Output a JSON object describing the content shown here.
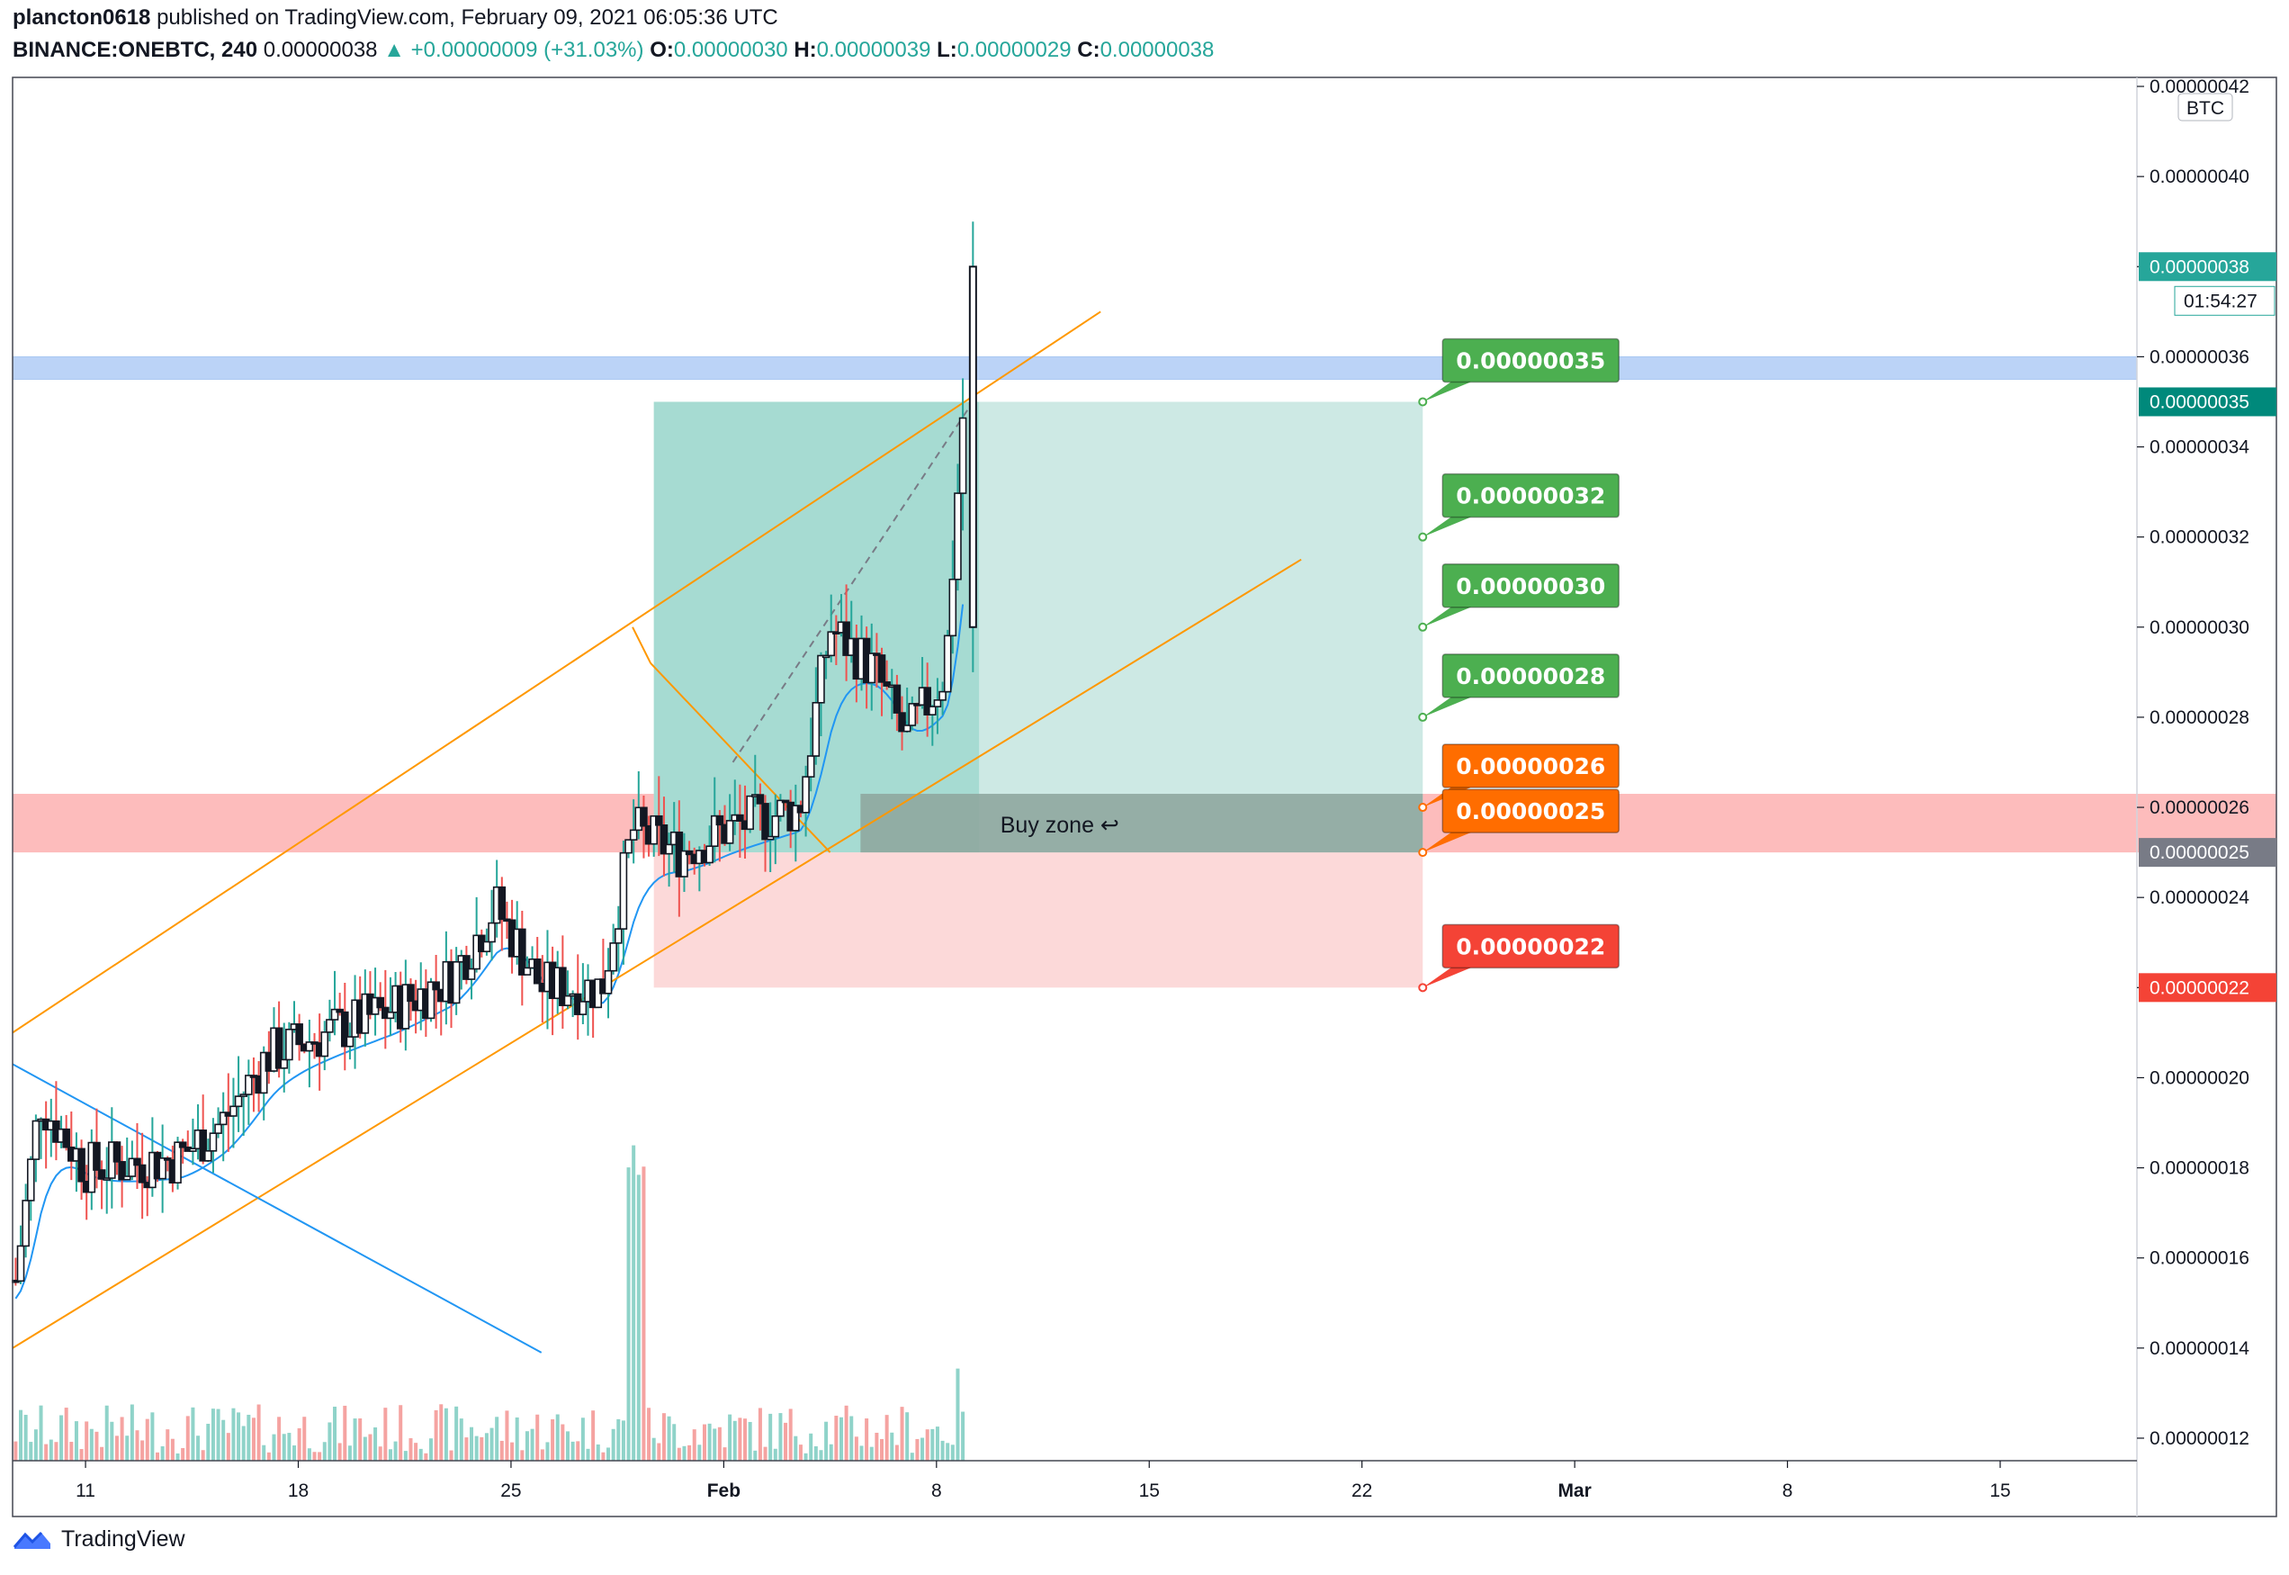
{
  "header": {
    "publisher": "plancton0618",
    "published_text": "published on TradingView.com, February 09, 2021 06:05:36 UTC",
    "symbol": "BINANCE:ONEBTC, 240",
    "last": "0.00000038",
    "change": "+0.00000009 (+31.03%)",
    "o_label": "O:",
    "o_value": "0.00000030",
    "h_label": "H:",
    "h_value": "0.00000039",
    "l_label": "L:",
    "l_value": "0.00000029",
    "c_label": "C:",
    "c_value": "0.00000038"
  },
  "footer": {
    "brand": "TradingView"
  },
  "colors": {
    "up": "#26a69a",
    "down": "#ef5350",
    "body": "#131722",
    "ma": "#2196f3",
    "channel": "#ff9800",
    "downtrend": "#2196f3",
    "resistance_zone": "#bbd3f7",
    "support_zone": "#fdbcbc",
    "target_zone": "#cde9e4",
    "stop_zone": "#fcd9d9",
    "target_label": "#4caf50",
    "entry_label": "#ff6d00",
    "stop_label": "#f44336"
  },
  "chart_data": {
    "type": "candlestick",
    "symbol": "BINANCE:ONEBTC",
    "timeframe": "240",
    "currency_badge": "BTC",
    "y_ticks": [
      "0.00000042",
      "0.00000040",
      "0.00000038",
      "0.00000036",
      "0.00000034",
      "0.00000032",
      "0.00000030",
      "0.00000028",
      "0.00000026",
      "0.00000024",
      "0.00000022",
      "0.00000020",
      "0.00000018",
      "0.00000016",
      "0.00000014",
      "0.00000012"
    ],
    "y_tick_values": [
      4.2e-07,
      4e-07,
      3.8e-07,
      3.6e-07,
      3.4e-07,
      3.2e-07,
      3e-07,
      2.8e-07,
      2.6e-07,
      2.4e-07,
      2.2e-07,
      2e-07,
      1.8e-07,
      1.6e-07,
      1.4e-07,
      1.2e-07
    ],
    "ylim": [
      1.15e-07,
      4.22e-07
    ],
    "x_ticks": [
      "11",
      "18",
      "25",
      "Feb",
      "8",
      "15",
      "22",
      "Mar",
      "8",
      "15"
    ],
    "x_tick_days": [
      11,
      18,
      25,
      32,
      39,
      46,
      53,
      60,
      67,
      74
    ],
    "xlim_days": [
      8.6,
      78.5
    ],
    "price_path": [
      {
        "day": 8.7,
        "price": 1.55e-07
      },
      {
        "day": 9.5,
        "price": 1.95e-07
      },
      {
        "day": 11,
        "price": 1.8e-07
      },
      {
        "day": 14,
        "price": 1.82e-07
      },
      {
        "day": 15.5,
        "price": 1.9e-07
      },
      {
        "day": 17,
        "price": 2.05e-07
      },
      {
        "day": 19,
        "price": 2.1e-07
      },
      {
        "day": 21,
        "price": 2.15e-07
      },
      {
        "day": 23,
        "price": 2.22e-07
      },
      {
        "day": 24.5,
        "price": 2.38e-07
      },
      {
        "day": 26,
        "price": 2.2e-07
      },
      {
        "day": 28,
        "price": 2.2e-07
      },
      {
        "day": 29,
        "price": 2.55e-07
      },
      {
        "day": 30.5,
        "price": 2.5e-07
      },
      {
        "day": 32,
        "price": 2.55e-07
      },
      {
        "day": 34.5,
        "price": 2.6e-07
      },
      {
        "day": 35.5,
        "price": 3e-07
      },
      {
        "day": 37,
        "price": 2.9e-07
      },
      {
        "day": 38,
        "price": 2.75e-07
      },
      {
        "day": 39.3,
        "price": 2.9e-07
      },
      {
        "day": 40.2,
        "price": 3.8e-07
      }
    ],
    "last_price": "0.00000038",
    "countdown": "01:54:27",
    "resistance_zone": [
      3.55e-07,
      3.6e-07
    ],
    "support_zone": [
      2.5e-07,
      2.63e-07
    ],
    "buy_zone_label": "Buy zone",
    "position": {
      "start_day": 29.7,
      "end_day": 55.0,
      "entry": 2.5e-07,
      "target": 3.5e-07,
      "stop": 2.2e-07
    },
    "target_labels": [
      "0.00000035",
      "0.00000032",
      "0.00000030",
      "0.00000028"
    ],
    "target_values": [
      3.5e-07,
      3.2e-07,
      3e-07,
      2.8e-07
    ],
    "entry_labels": [
      "0.00000026",
      "0.00000025"
    ],
    "entry_values": [
      2.6e-07,
      2.5e-07
    ],
    "stop_label": "0.00000022",
    "stop_value": 2.2e-07,
    "axis_price_tags": [
      {
        "text": "0.00000038",
        "kind": "last"
      },
      {
        "text": "0.00000035",
        "kind": "target"
      },
      {
        "text": "0.00000025",
        "kind": "entry"
      },
      {
        "text": "0.00000022",
        "kind": "stop"
      }
    ],
    "channel": {
      "upper": [
        {
          "day": 8.6,
          "price": 2.1e-07
        },
        {
          "day": 44.4,
          "price": 3.7e-07
        }
      ],
      "lower": [
        {
          "day": 8.6,
          "price": 1.4e-07
        },
        {
          "day": 51.0,
          "price": 3.15e-07
        }
      ]
    },
    "downtrend_line": [
      {
        "day": 8.6,
        "price": 2.03e-07
      },
      {
        "day": 26.0,
        "price": 1.39e-07
      }
    ],
    "wedge_line": [
      {
        "day": 29.0,
        "price": 3e-07
      },
      {
        "day": 33.0,
        "price": 2.55e-07
      }
    ]
  }
}
